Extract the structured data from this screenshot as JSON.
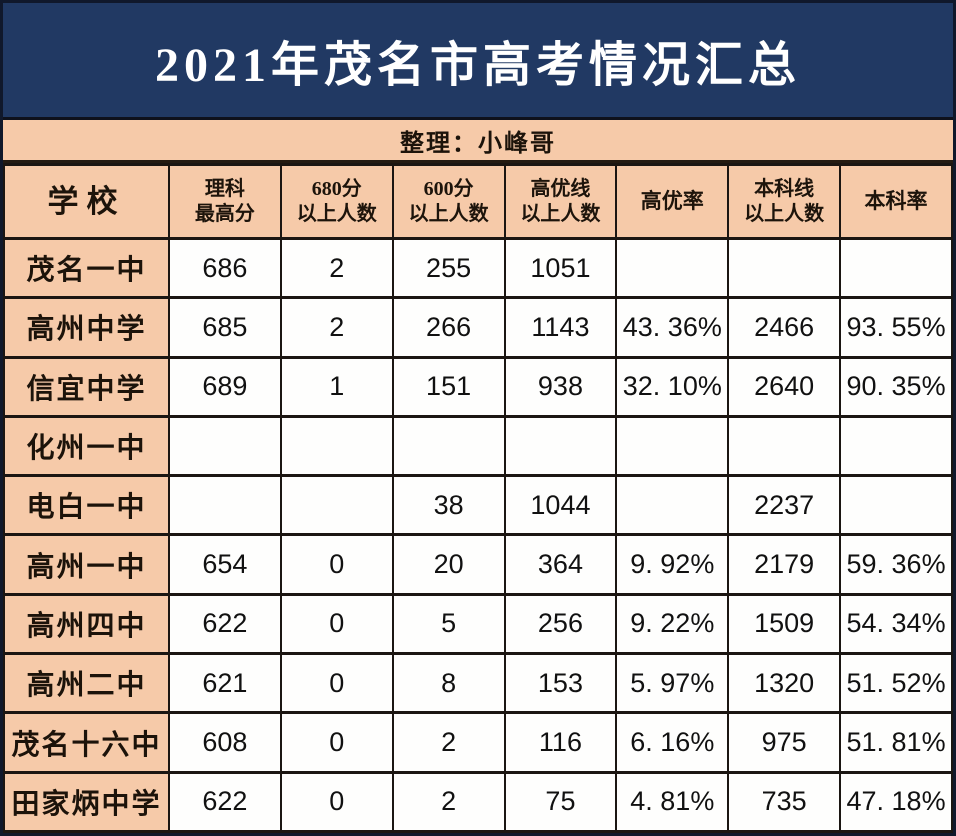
{
  "title": "2021年茂名市高考情况汇总",
  "subtitle": "整理：小峰哥",
  "colors": {
    "title_bg": "#213963",
    "title_text": "#FFFFFF",
    "accent_bg": "#F6CAA9",
    "cell_bg": "#FEFEFD",
    "border": "#1B1612",
    "body_text": "#1C130A"
  },
  "table": {
    "columns": [
      {
        "id": "school",
        "lines": [
          "学校"
        ]
      },
      {
        "id": "science-top-score",
        "lines": [
          "理科",
          "最高分"
        ]
      },
      {
        "id": "above-680-count",
        "lines": [
          "680分",
          "以上人数"
        ]
      },
      {
        "id": "above-600-count",
        "lines": [
          "600分",
          "以上人数"
        ]
      },
      {
        "id": "above-gaoyou-count",
        "lines": [
          "高优线",
          "以上人数"
        ]
      },
      {
        "id": "gaoyou-rate",
        "lines": [
          "高优率"
        ]
      },
      {
        "id": "above-benke-count",
        "lines": [
          "本科线",
          "以上人数"
        ]
      },
      {
        "id": "benke-rate",
        "lines": [
          "本科率"
        ]
      }
    ],
    "rows": [
      {
        "school": "茂名一中",
        "cells": [
          "686",
          "2",
          "255",
          "1051",
          "",
          "",
          ""
        ]
      },
      {
        "school": "高州中学",
        "cells": [
          "685",
          "2",
          "266",
          "1143",
          "43. 36%",
          "2466",
          "93. 55%"
        ]
      },
      {
        "school": "信宜中学",
        "cells": [
          "689",
          "1",
          "151",
          "938",
          "32. 10%",
          "2640",
          "90. 35%"
        ]
      },
      {
        "school": "化州一中",
        "cells": [
          "",
          "",
          "",
          "",
          "",
          "",
          ""
        ]
      },
      {
        "school": "电白一中",
        "cells": [
          "",
          "",
          "38",
          "1044",
          "",
          "2237",
          ""
        ]
      },
      {
        "school": "高州一中",
        "cells": [
          "654",
          "0",
          "20",
          "364",
          "9. 92%",
          "2179",
          "59. 36%"
        ]
      },
      {
        "school": "高州四中",
        "cells": [
          "622",
          "0",
          "5",
          "256",
          "9. 22%",
          "1509",
          "54. 34%"
        ]
      },
      {
        "school": "高州二中",
        "cells": [
          "621",
          "0",
          "8",
          "153",
          "5. 97%",
          "1320",
          "51. 52%"
        ]
      },
      {
        "school": "茂名十六中",
        "cells": [
          "608",
          "0",
          "2",
          "116",
          "6. 16%",
          "975",
          "51. 81%"
        ]
      },
      {
        "school": "田家炳中学",
        "cells": [
          "622",
          "0",
          "2",
          "75",
          "4. 81%",
          "735",
          "47. 18%"
        ]
      }
    ]
  },
  "chart_data": {
    "type": "table",
    "title": "2021年茂名市高考情况汇总",
    "subtitle": "整理：小峰哥",
    "columns": [
      "学校",
      "理科最高分",
      "680分以上人数",
      "600分以上人数",
      "高优线以上人数",
      "高优率",
      "本科线以上人数",
      "本科率"
    ],
    "rows": [
      [
        "茂名一中",
        686,
        2,
        255,
        1051,
        null,
        null,
        null
      ],
      [
        "高州中学",
        685,
        2,
        266,
        1143,
        "43.36%",
        2466,
        "93.55%"
      ],
      [
        "信宜中学",
        689,
        1,
        151,
        938,
        "32.10%",
        2640,
        "90.35%"
      ],
      [
        "化州一中",
        null,
        null,
        null,
        null,
        null,
        null,
        null
      ],
      [
        "电白一中",
        null,
        null,
        38,
        1044,
        null,
        2237,
        null
      ],
      [
        "高州一中",
        654,
        0,
        20,
        364,
        "9.92%",
        2179,
        "59.36%"
      ],
      [
        "高州四中",
        622,
        0,
        5,
        256,
        "9.22%",
        1509,
        "54.34%"
      ],
      [
        "高州二中",
        621,
        0,
        8,
        153,
        "5.97%",
        1320,
        "51.52%"
      ],
      [
        "茂名十六中",
        608,
        0,
        2,
        116,
        "6.16%",
        975,
        "51.81%"
      ],
      [
        "田家炳中学",
        622,
        0,
        2,
        75,
        "4.81%",
        735,
        "47.18%"
      ]
    ]
  }
}
